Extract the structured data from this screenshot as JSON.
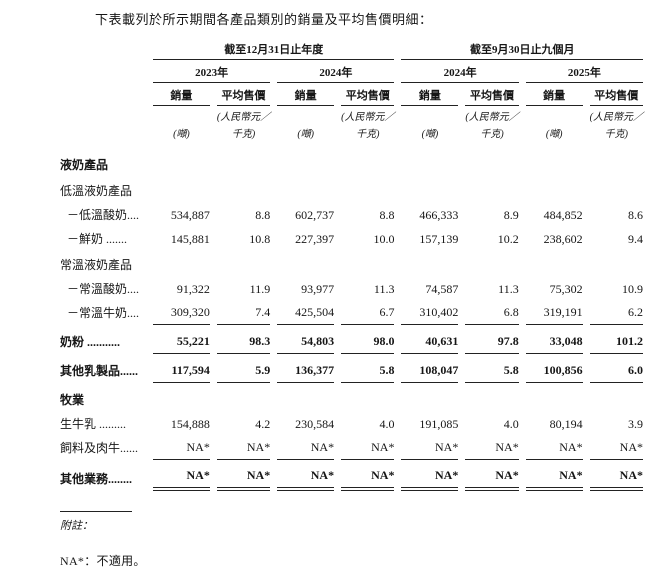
{
  "page": {
    "intro": "下表載列於所示期間各產品類別的銷量及平均售價明細："
  },
  "table": {
    "period_groups": [
      {
        "label": "截至12月31日止年度",
        "years": [
          "2023年",
          "2024年"
        ]
      },
      {
        "label": "截至9月30日止九個月",
        "years": [
          "2024年",
          "2025年"
        ]
      }
    ],
    "col_headers": {
      "volume": "銷量",
      "price": "平均售價"
    },
    "units": {
      "volume": "(噸)",
      "price_line1": "(人民幣元／",
      "price_line2": "千克)"
    },
    "rows": [
      {
        "type": "section",
        "label": "液奶產品"
      },
      {
        "type": "subsection",
        "label": "低溫液奶產品"
      },
      {
        "type": "item",
        "indent": true,
        "label": "－低溫酸奶....",
        "values": [
          "534,887",
          "8.8",
          "602,737",
          "8.8",
          "466,333",
          "8.9",
          "484,852",
          "8.6"
        ]
      },
      {
        "type": "item",
        "indent": true,
        "label": "－鮮奶 .......",
        "values": [
          "145,881",
          "10.8",
          "227,397",
          "10.0",
          "157,139",
          "10.2",
          "238,602",
          "9.4"
        ]
      },
      {
        "type": "subsection",
        "label": "常溫液奶產品"
      },
      {
        "type": "item",
        "indent": true,
        "label": "－常溫酸奶....",
        "values": [
          "91,322",
          "11.9",
          "93,977",
          "11.3",
          "74,587",
          "11.3",
          "75,302",
          "10.9"
        ]
      },
      {
        "type": "item",
        "indent": true,
        "label": "－常溫牛奶....",
        "values": [
          "309,320",
          "7.4",
          "425,504",
          "6.7",
          "310,402",
          "6.8",
          "319,191",
          "6.2"
        ],
        "rule": "single"
      },
      {
        "type": "total",
        "bold": true,
        "gap_above": true,
        "label": "奶粉 ...........",
        "values": [
          "55,221",
          "98.3",
          "54,803",
          "98.0",
          "40,631",
          "97.8",
          "33,048",
          "101.2"
        ],
        "rule": "single"
      },
      {
        "type": "total",
        "bold": true,
        "gap_above": true,
        "label": "其他乳製品......",
        "values": [
          "117,594",
          "5.9",
          "136,377",
          "5.8",
          "108,047",
          "5.8",
          "100,856",
          "6.0"
        ],
        "rule": "single"
      },
      {
        "type": "section",
        "gap_above": true,
        "label": "牧業"
      },
      {
        "type": "item",
        "label": "生牛乳 .........",
        "values": [
          "154,888",
          "4.2",
          "230,584",
          "4.0",
          "191,085",
          "4.0",
          "80,194",
          "3.9"
        ]
      },
      {
        "type": "item",
        "label": "飼料及肉牛......",
        "values": [
          "NA*",
          "NA*",
          "NA*",
          "NA*",
          "NA*",
          "NA*",
          "NA*",
          "NA*"
        ],
        "rule": "single"
      },
      {
        "type": "total",
        "bold": true,
        "gap_above": true,
        "label": "其他業務........",
        "values": [
          "NA*",
          "NA*",
          "NA*",
          "NA*",
          "NA*",
          "NA*",
          "NA*",
          "NA*"
        ],
        "rule": "double"
      }
    ]
  },
  "footnotes": {
    "note_label": "附註：",
    "na_note": "NA*：不適用。"
  }
}
